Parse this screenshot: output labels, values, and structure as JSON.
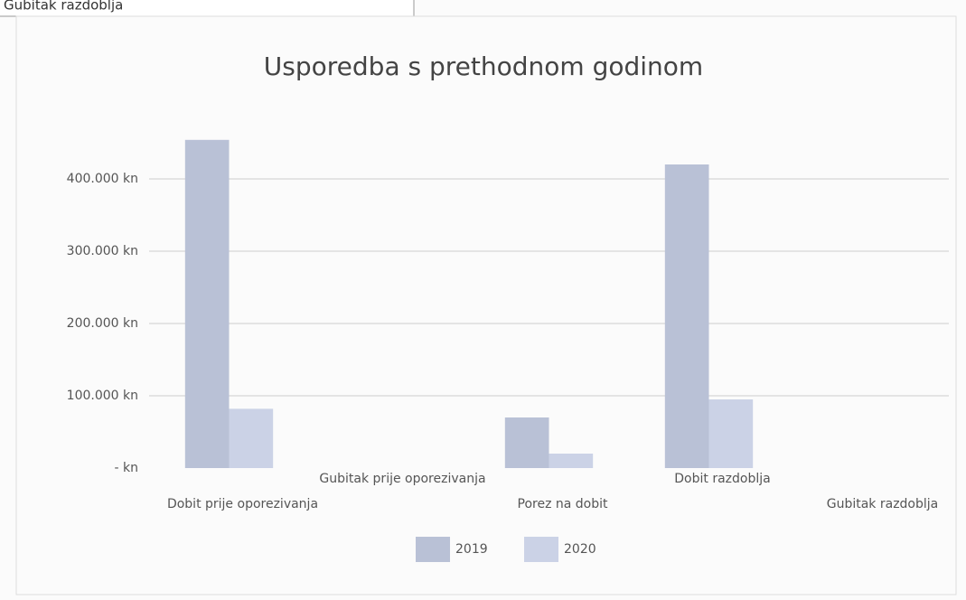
{
  "header": "Gubitak razdoblja",
  "chart_data": {
    "type": "bar",
    "title": "Usporedba s prethodnom godinom",
    "categories": [
      "Dobit prije oporezivanja",
      "Gubitak prije oporezivanja",
      "Porez na dobit",
      "Dobit razdoblja",
      "Gubitak razdoblja"
    ],
    "series": [
      {
        "name": "2019",
        "color": "#b9c1d6",
        "values": [
          454000,
          0,
          70000,
          420000,
          0
        ]
      },
      {
        "name": "2020",
        "color": "#cbd2e6",
        "values": [
          82000,
          0,
          20000,
          95000,
          0
        ]
      }
    ],
    "ylim": [
      0,
      460000
    ],
    "yticks": [
      {
        "value": 0,
        "label": "- kn"
      },
      {
        "value": 100000,
        "label": "100.000 kn"
      },
      {
        "value": 200000,
        "label": "200.000 kn"
      },
      {
        "value": 300000,
        "label": "300.000 kn"
      },
      {
        "value": 400000,
        "label": "400.000 kn"
      }
    ],
    "grid": true,
    "legend": "bottom"
  }
}
